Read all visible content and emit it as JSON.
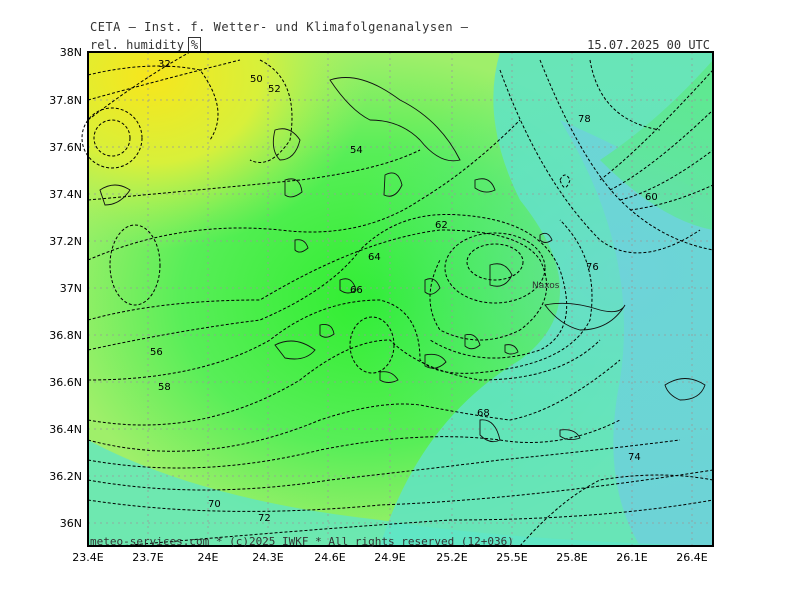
{
  "header": {
    "title": "CETA — Inst. f. Wetter- und Klimafolgenanalysen —",
    "variable": "rel. humidity",
    "unit": "%",
    "valid_time": "15.07.2025 00 UTC"
  },
  "map": {
    "place_label": "Naxos",
    "x_ticks": [
      "23.4E",
      "23.7E",
      "24E",
      "24.3E",
      "24.6E",
      "24.9E",
      "25.2E",
      "25.5E",
      "25.8E",
      "26.1E",
      "26.4E"
    ],
    "y_ticks": [
      "38N",
      "37.8N",
      "37.6N",
      "37.4N",
      "37.2N",
      "37N",
      "36.8N",
      "36.6N",
      "36.4N",
      "36.2N",
      "36N"
    ],
    "contour_labels": [
      "32",
      "50",
      "52",
      "54",
      "56",
      "58",
      "60",
      "62",
      "64",
      "66",
      "68",
      "70",
      "72",
      "74",
      "76",
      "78"
    ],
    "colors": {
      "dry": "#f7e61c",
      "mid": "#a6f060",
      "moist": "#3cf03c",
      "wet": "#5ee6c8",
      "very_wet": "#6fd3dc"
    }
  },
  "footer": {
    "credit": "meteo-services.com * (c)2025 IWKF * All rights reserved (12+036)"
  }
}
